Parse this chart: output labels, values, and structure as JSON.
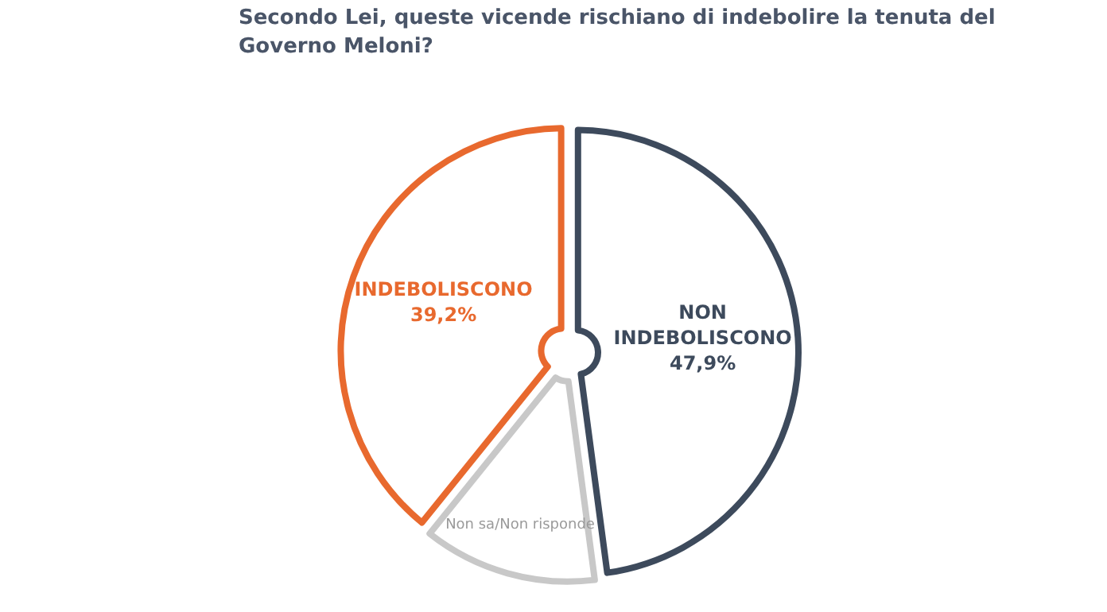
{
  "chart_data": {
    "type": "pie",
    "title": "Secondo Lei, queste vicende rischiano di indebolire la tenuta del Governo Meloni?",
    "categories": [
      "NON INDEBOLISCONO",
      "Non sa/Non risponde",
      "INDEBOLISCONO"
    ],
    "values": [
      47.9,
      12.9,
      39.2
    ],
    "colors": [
      "#3d4a5c",
      "#c8c8c8",
      "#e8692e"
    ],
    "value_labels": [
      "47,9%",
      null,
      "39,2%"
    ]
  }
}
